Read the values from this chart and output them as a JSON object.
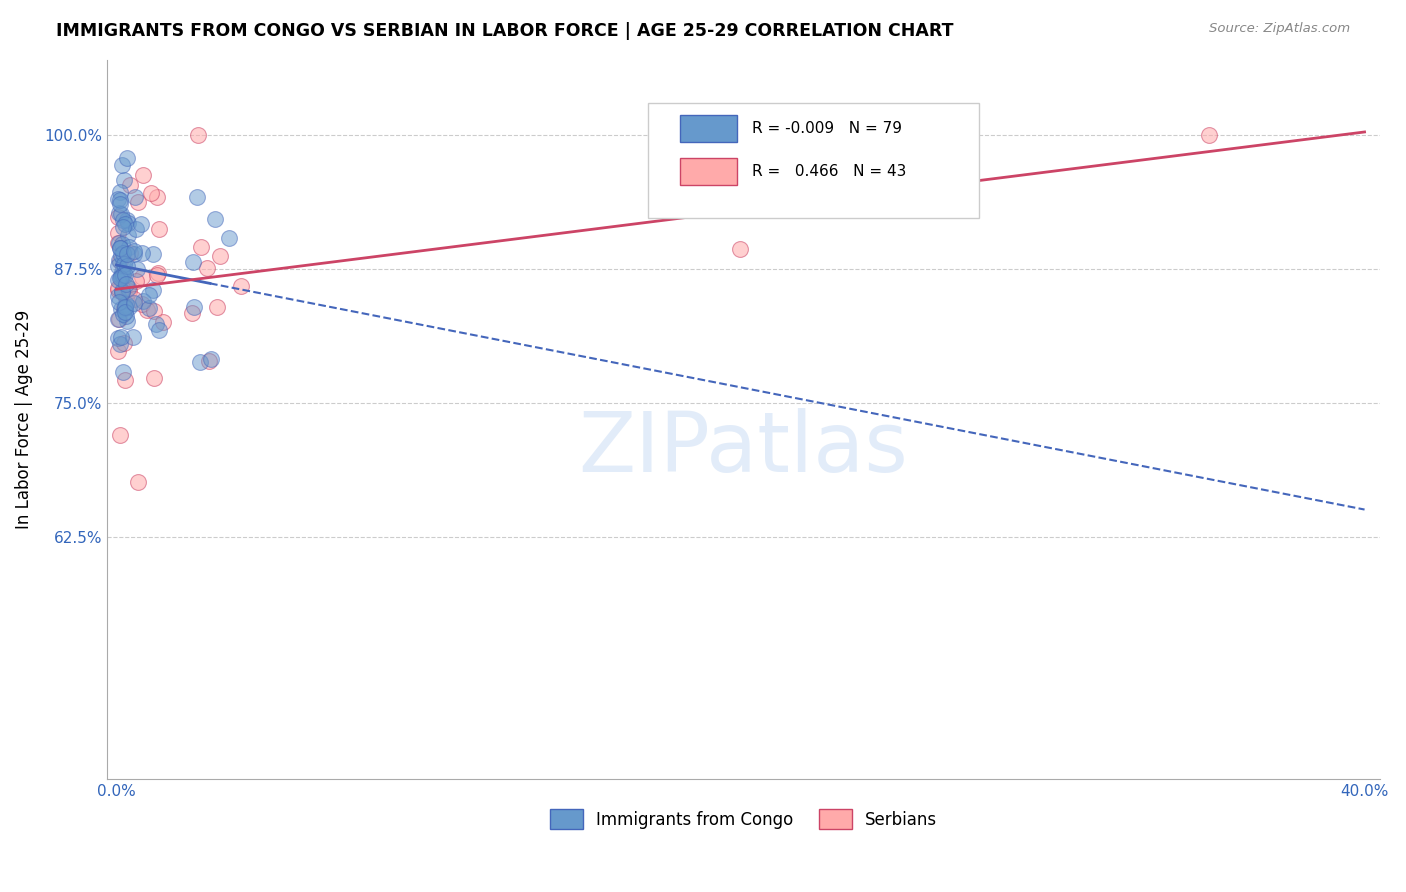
{
  "title": "IMMIGRANTS FROM CONGO VS SERBIAN IN LABOR FORCE | AGE 25-29 CORRELATION CHART",
  "source": "Source: ZipAtlas.com",
  "ylabel": "In Labor Force | Age 25-29",
  "watermark": "ZIPatlas",
  "congo_R": -0.009,
  "congo_N": 79,
  "serbian_R": 0.466,
  "serbian_N": 43,
  "congo_color": "#6699cc",
  "serbian_color": "#ffaaaa",
  "congo_trend_color": "#4466bb",
  "serbian_trend_color": "#cc4466",
  "legend_label_congo": "Immigrants from Congo",
  "legend_label_serbian": "Serbians",
  "xlim": [
    -0.003,
    0.405
  ],
  "ylim": [
    0.4,
    1.07
  ],
  "ytick_positions": [
    0.625,
    0.75,
    0.875,
    1.0
  ],
  "ytick_labels": [
    "62.5%",
    "75.0%",
    "87.5%",
    "100.0%"
  ],
  "xtick_positions": [
    0.0,
    0.1,
    0.2,
    0.3,
    0.4
  ],
  "xtick_labels": [
    "0.0%",
    "",
    "",
    "",
    "40.0%"
  ]
}
